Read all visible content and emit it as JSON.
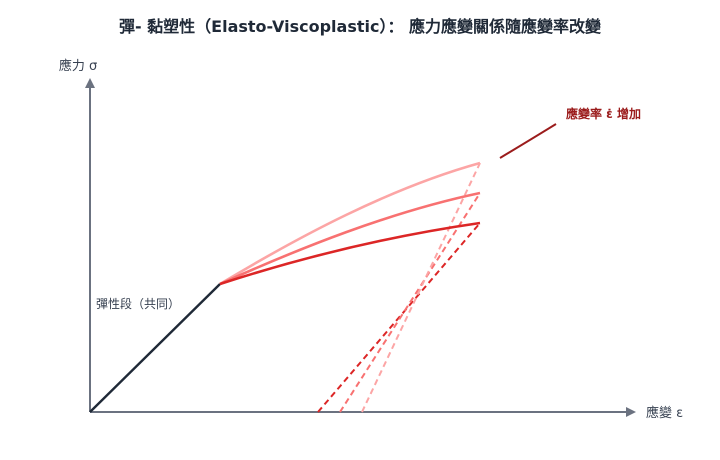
{
  "title": "彈- 黏塑性（Elasto-Viscoplastic）： 應力應變關係隨應變率改變",
  "y_axis_label": "應力 σ",
  "x_axis_label": "應變 ε",
  "elastic_note": "彈性段（共同）",
  "rate_label": "應變率 ε̇ 增加",
  "colors": {
    "elastic": "#1f2937",
    "axis": "#6b7280",
    "curve_high": "#fca5a5",
    "curve_mid": "#f87171",
    "curve_low": "#dc2626",
    "unload_high": "#fca5a5",
    "unload_mid": "#f87171",
    "unload_low": "#dc2626",
    "rate_arrow": "#9b1c1c"
  }
}
